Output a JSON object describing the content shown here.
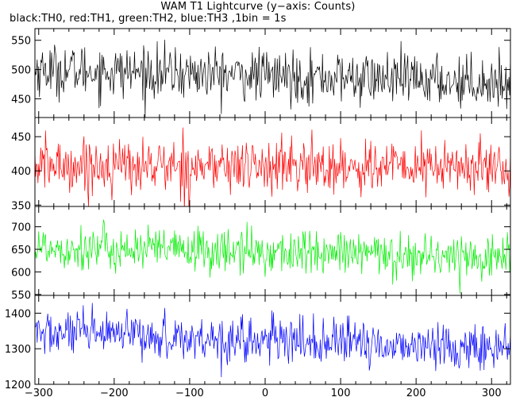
{
  "header": {
    "title": "WAM T1 Lightcurve (y−axis: Counts)",
    "subtitle": "black:TH0, red:TH1, green:TH2, blue:TH3 ,1bin = 1s"
  },
  "chart_data": {
    "type": "line",
    "shared_x": {
      "xlim": [
        -305,
        325
      ],
      "ticks": [
        -300,
        -200,
        -100,
        0,
        100,
        200,
        300
      ],
      "tick_labels": [
        "−300",
        "−200",
        "−100",
        "0",
        "100",
        "200",
        "300"
      ],
      "bin_seconds": 1
    },
    "panels": [
      {
        "color": "#000000",
        "ylim": [
          418,
          570
        ],
        "yticks": [
          450,
          500,
          550
        ],
        "ytick_labels": [
          "450",
          "500",
          "550"
        ],
        "start_mean": 500,
        "end_mean": 478,
        "noise_sigma": 22
      },
      {
        "color": "#ff0000",
        "ylim": [
          348,
          478
        ],
        "yticks": [
          350,
          400,
          450
        ],
        "ytick_labels": [
          "350",
          "400",
          "450"
        ],
        "start_mean": 408,
        "end_mean": 405,
        "noise_sigma": 20
      },
      {
        "color": "#00ee00",
        "ylim": [
          548,
          745
        ],
        "yticks": [
          550,
          600,
          650,
          700
        ],
        "ytick_labels": [
          "550",
          "600",
          "650",
          "700"
        ],
        "start_mean": 655,
        "end_mean": 632,
        "noise_sigma": 25
      },
      {
        "color": "#0000ff",
        "ylim": [
          1200,
          1450
        ],
        "yticks": [
          1200,
          1300,
          1400
        ],
        "ytick_labels": [
          "1200",
          "1300",
          "1400"
        ],
        "start_mean": 1345,
        "end_mean": 1300,
        "noise_sigma": 32
      }
    ]
  }
}
